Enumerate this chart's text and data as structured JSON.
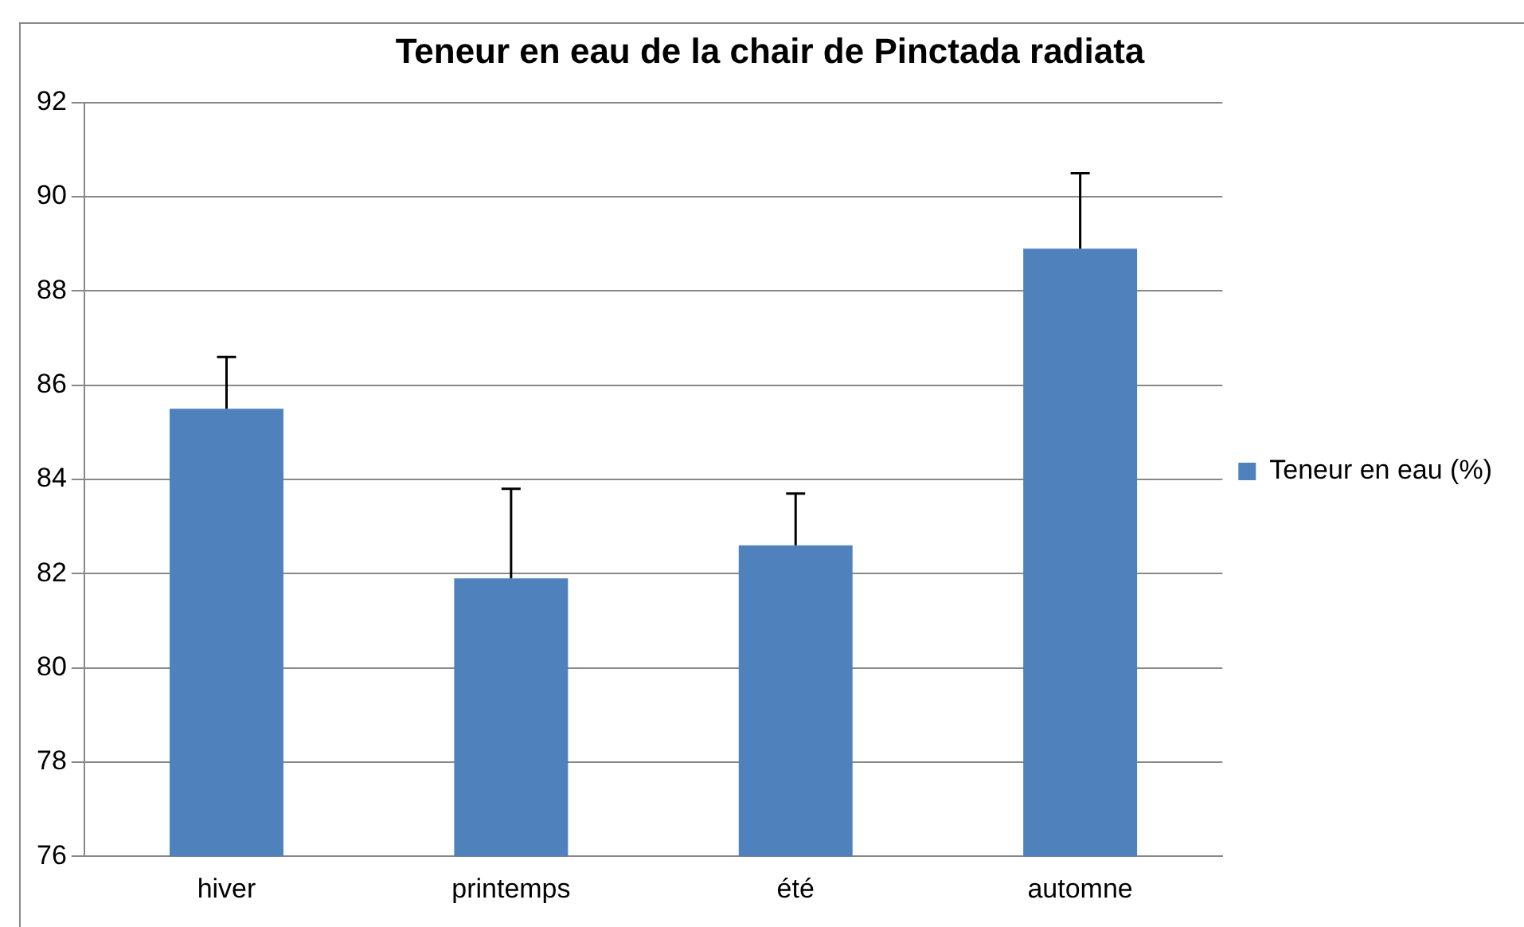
{
  "chart_data": {
    "type": "bar",
    "title": "Teneur en eau de la chair de Pinctada radiata",
    "categories": [
      "hiver",
      "printemps",
      "été",
      "automne"
    ],
    "series": [
      {
        "name": "Teneur en eau (%)",
        "color": "#4f81bd",
        "values": [
          85.5,
          81.9,
          82.6,
          88.9
        ],
        "errors": [
          1.1,
          1.9,
          1.1,
          1.6
        ]
      }
    ],
    "ylim": [
      76,
      92
    ],
    "yticks": [
      76,
      78,
      80,
      82,
      84,
      86,
      88,
      90,
      92
    ],
    "grid": "y",
    "legend": "right"
  }
}
